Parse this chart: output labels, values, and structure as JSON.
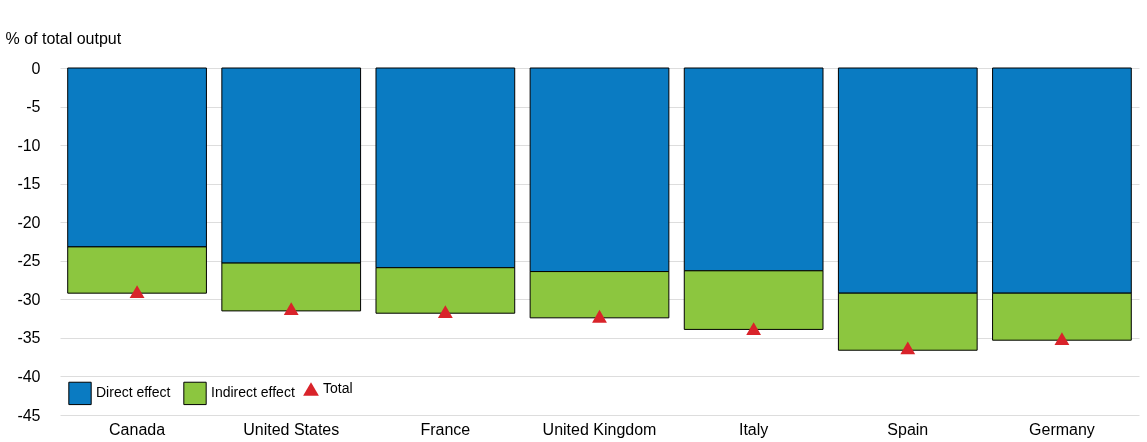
{
  "chart_data": {
    "type": "bar",
    "stacked": true,
    "ylabel": "% of total output",
    "categories": [
      "Canada",
      "United States",
      "France",
      "United Kingdom",
      "Italy",
      "Spain",
      "Germany"
    ],
    "series": [
      {
        "name": "Direct effect",
        "color": "#0a7bc2",
        "values": [
          -23.2,
          -25.3,
          -25.9,
          -26.4,
          -26.3,
          -29.2,
          -29.2
        ]
      },
      {
        "name": "Indirect effect",
        "color": "#8cc63f",
        "values": [
          -6.0,
          -6.2,
          -5.9,
          -6.0,
          -7.6,
          -7.4,
          -6.1
        ]
      },
      {
        "name": "Total",
        "type": "scatter",
        "marker": "triangle",
        "color": "#d9232a",
        "values": [
          -29.0,
          -31.2,
          -31.6,
          -32.2,
          -33.8,
          -36.3,
          -35.1
        ]
      }
    ],
    "ylim": [
      -45,
      0
    ],
    "yticks": [
      0,
      -5,
      -10,
      -15,
      -20,
      -25,
      -30,
      -35,
      -40,
      -45
    ],
    "grid": "y",
    "legend": "bottom left"
  }
}
